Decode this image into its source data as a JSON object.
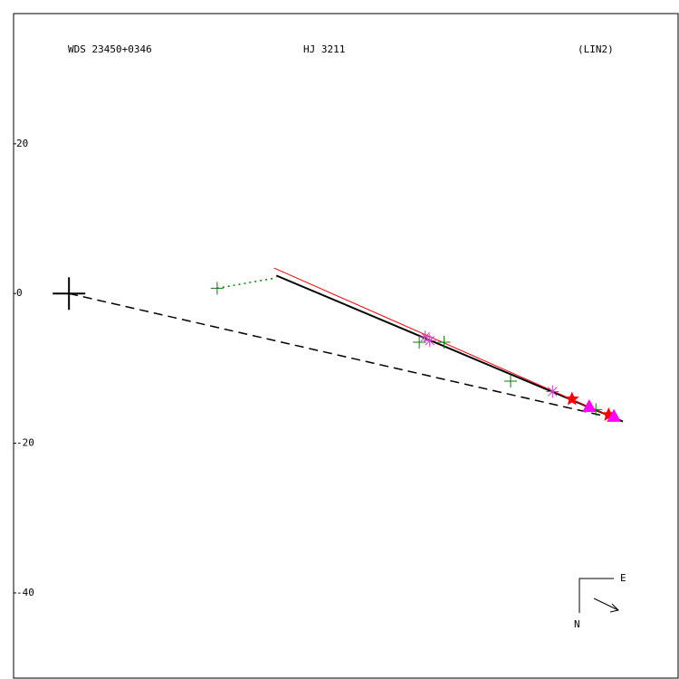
{
  "chart_data": {
    "type": "scatter",
    "header": {
      "left": "WDS 23450+0346",
      "center": "HJ 3211",
      "right": "(LIN2)"
    },
    "compass": {
      "east": "E",
      "north": "N"
    },
    "xlim": [
      -7.4,
      81.5
    ],
    "ylim": [
      -51.5,
      37.4
    ],
    "yticks": [
      -40,
      -20,
      0,
      20
    ],
    "primary": {
      "x": 0,
      "y": 0,
      "color": "#000000"
    },
    "series": [
      {
        "kind": "line",
        "color": "#000000",
        "dash": "dashed",
        "x": [
          0,
          73.0
        ],
        "values": [
          0,
          -16.7
        ]
      },
      {
        "kind": "line",
        "color": "#008000",
        "dash": "dotted",
        "x": [
          19.8,
          27.7
        ],
        "values": [
          0.7,
          2.1
        ]
      },
      {
        "kind": "line",
        "color": "#000000",
        "dash": "solid",
        "width": 2,
        "x": [
          27.7,
          74.0
        ],
        "values": [
          2.4,
          -17.1
        ]
      },
      {
        "kind": "line",
        "color": "#ff0000",
        "dash": "solid",
        "width": 1,
        "x": [
          27.4,
          73.0
        ],
        "values": [
          3.4,
          -16.7
        ]
      },
      {
        "kind": "points",
        "marker": "plus",
        "color": "#008000",
        "x": [
          19.8,
          46.8,
          50.1,
          59.0,
          70.4
        ],
        "values": [
          0.7,
          -6.5,
          -6.5,
          -11.7,
          -15.5
        ]
      },
      {
        "kind": "points",
        "marker": "asterisk",
        "color": "#c040c0",
        "x": [
          47.6,
          48.2,
          64.6
        ],
        "values": [
          -5.8,
          -6.3,
          -13.1
        ]
      },
      {
        "kind": "points",
        "marker": "star",
        "color": "#ff0000",
        "x": [
          67.2,
          72.1
        ],
        "values": [
          -14.1,
          -16.2
        ]
      },
      {
        "kind": "points",
        "marker": "triangle",
        "color": "#ff00ff",
        "x": [
          69.5,
          72.8
        ],
        "values": [
          -15.1,
          -16.4
        ]
      }
    ]
  }
}
